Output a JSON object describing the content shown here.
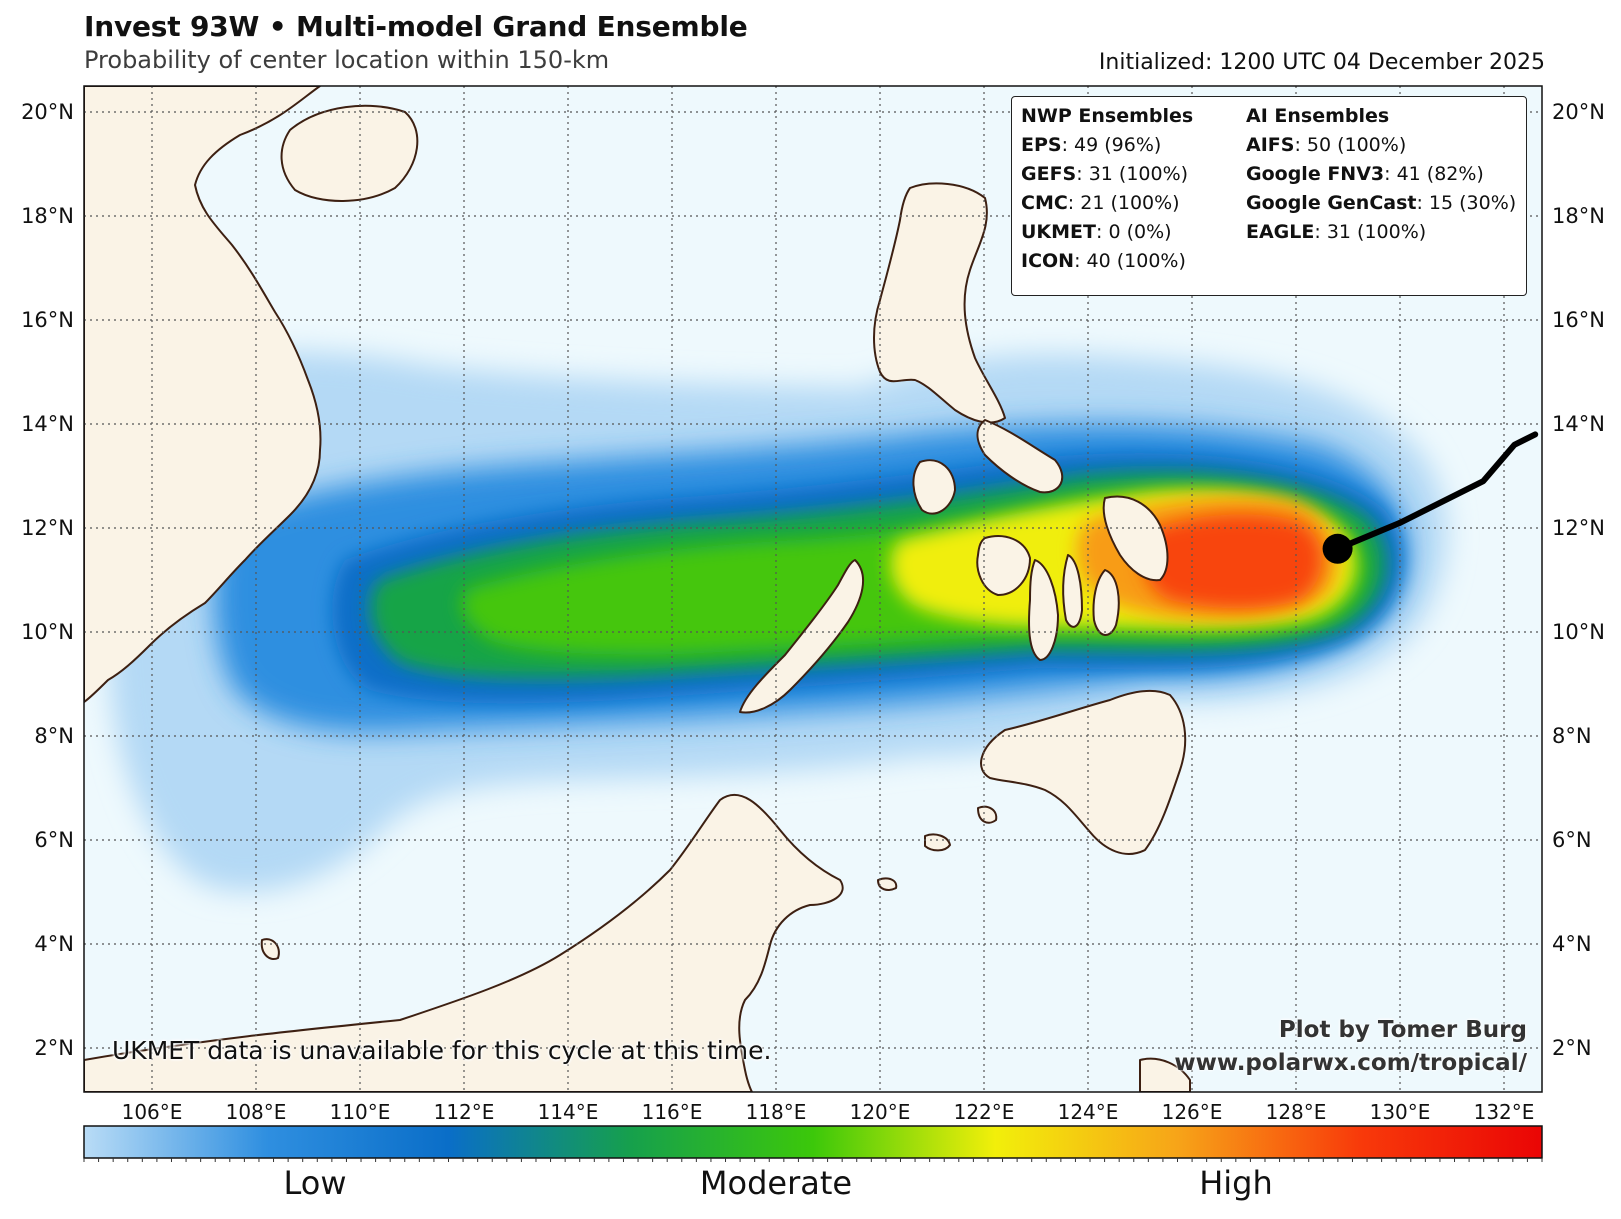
{
  "header": {
    "title": "Invest 93W • Multi-model Grand Ensemble",
    "subtitle": "Probability of center location within 150-km",
    "initialized": "Initialized: 1200 UTC 04 December 2025"
  },
  "legend": {
    "nwp": {
      "heading": "NWP Ensembles",
      "items": [
        {
          "model": "EPS",
          "value": ": 49 (96%)"
        },
        {
          "model": "GEFS",
          "value": ": 31 (100%)"
        },
        {
          "model": "CMC",
          "value": ": 21 (100%)"
        },
        {
          "model": "UKMET",
          "value": ": 0 (0%)"
        },
        {
          "model": "ICON",
          "value": ": 40 (100%)"
        }
      ]
    },
    "ai": {
      "heading": "AI Ensembles",
      "items": [
        {
          "model": "AIFS",
          "value": ": 50 (100%)"
        },
        {
          "model": "Google FNV3",
          "value": ": 41 (82%)"
        },
        {
          "model": "Google GenCast",
          "value": ": 15 (30%)"
        },
        {
          "model": "EAGLE",
          "value": ": 31 (100%)"
        }
      ]
    }
  },
  "map": {
    "lat_labels": [
      "20°N",
      "18°N",
      "16°N",
      "14°N",
      "12°N",
      "10°N",
      "8°N",
      "6°N",
      "4°N",
      "2°N"
    ],
    "lon_labels": [
      "106°E",
      "108°E",
      "110°E",
      "112°E",
      "114°E",
      "116°E",
      "118°E",
      "120°E",
      "122°E",
      "124°E",
      "126°E",
      "128°E",
      "130°E",
      "132°E"
    ],
    "ocean_color": "#eef9fd",
    "land_color": "#faf3e6",
    "coast_color": "#3d2012",
    "current_position": {
      "lon": 128.8,
      "lat": 11.6
    },
    "track": [
      {
        "lon": 128.8,
        "lat": 11.6
      },
      {
        "lon": 130.0,
        "lat": 12.1
      },
      {
        "lon": 131.6,
        "lat": 12.9
      },
      {
        "lon": 132.2,
        "lat": 13.6
      },
      {
        "lon": 132.6,
        "lat": 13.8
      }
    ]
  },
  "notes": {
    "ukmet": "UKMET data is unavailable for this cycle at this time.",
    "credit_line1": "Plot by Tomer Burg",
    "credit_line2": "www.polarwx.com/tropical/"
  },
  "colorbar": {
    "labels": [
      "Low",
      "Moderate",
      "High"
    ],
    "colors": [
      "#b9dcf6",
      "#2f8fe0",
      "#0a6ec8",
      "#16a04c",
      "#3cc80a",
      "#f2ef0a",
      "#f7a418",
      "#f83a0a",
      "#ea0505"
    ]
  }
}
